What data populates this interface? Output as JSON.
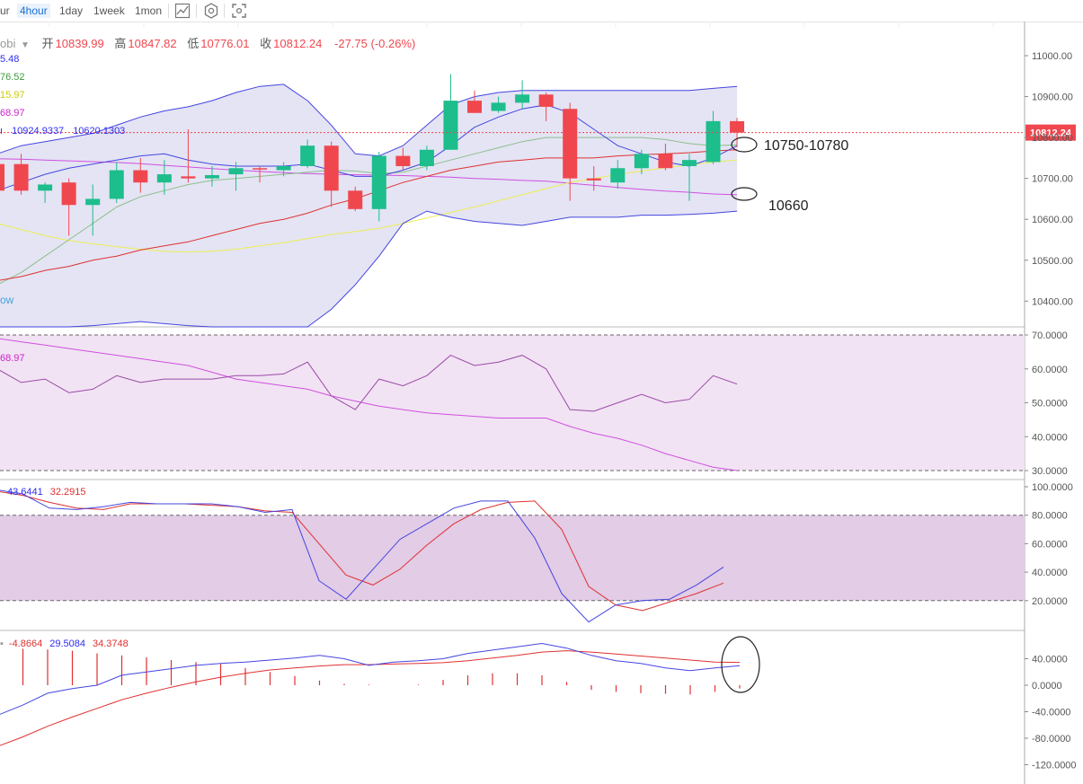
{
  "toolbar": {
    "timeframes": [
      "ur",
      "4hour",
      "1day",
      "1week",
      "1mon"
    ],
    "active_index": 1,
    "icons": [
      "line-chart-icon",
      "settings-icon",
      "fullscreen-icon"
    ]
  },
  "header": {
    "symbol_fragment": "obi",
    "open_label": "开",
    "open": "10839.99",
    "high_label": "高",
    "high": "10847.82",
    "low_label": "低",
    "low": "10776.01",
    "close_label": "收",
    "close": "10812.24",
    "change": "-27.75 (-0.26%)"
  },
  "legend": {
    "ma_values": [
      {
        "text": "5.48",
        "color": "#2d2df0"
      },
      {
        "text": "76.52",
        "color": "#3a9a3a"
      },
      {
        "text": "15.97",
        "color": "#cccc00"
      },
      {
        "text": "68.97",
        "color": "#cc22cc"
      }
    ],
    "boll_values": [
      "10924.9337",
      "10620.1303"
    ],
    "boll_color": "#2d2df0",
    "fragment_ow": "ow",
    "rsi_label": "68.97",
    "kdj_values": [
      "43.6441",
      "32.2915"
    ],
    "macd_values": [
      "-4.8664",
      "29.5084",
      "34.3748"
    ]
  },
  "price_tag": "10812.24",
  "annotations": {
    "upper": "10750-10780",
    "lower": "10660"
  },
  "colors": {
    "up": "#1dbd8c",
    "down": "#f0474f",
    "boll": "#4545e0",
    "band_fill": "#e4e4f4",
    "ma_red": "#e03030",
    "ma_green": "#8cbf8c",
    "ma_yellow": "#eeee55",
    "ma_magenta": "#d050e0",
    "rsi_fill": "#f1e3f3",
    "kdj_fill": "#e2cce6",
    "rsi_line": "#9b4aa8"
  },
  "chart_data": [
    {
      "type": "candlestick",
      "ylim": [
        10350,
        11060
      ],
      "yticks": [
        "11000.00",
        "10900.00",
        "10800.00",
        "10700.00",
        "10600.00",
        "10500.00",
        "10400.00"
      ],
      "candles": [
        {
          "o": 10735,
          "h": 10760,
          "l": 10625,
          "c": 10670
        },
        {
          "o": 10735,
          "h": 10760,
          "l": 10660,
          "c": 10670
        },
        {
          "o": 10670,
          "h": 10690,
          "l": 10640,
          "c": 10685
        },
        {
          "o": 10690,
          "h": 10700,
          "l": 10560,
          "c": 10635
        },
        {
          "o": 10635,
          "h": 10685,
          "l": 10560,
          "c": 10650
        },
        {
          "o": 10650,
          "h": 10740,
          "l": 10640,
          "c": 10720
        },
        {
          "o": 10720,
          "h": 10750,
          "l": 10665,
          "c": 10690
        },
        {
          "o": 10690,
          "h": 10745,
          "l": 10660,
          "c": 10710
        },
        {
          "o": 10705,
          "h": 10820,
          "l": 10690,
          "c": 10700
        },
        {
          "o": 10700,
          "h": 10730,
          "l": 10680,
          "c": 10708
        },
        {
          "o": 10710,
          "h": 10740,
          "l": 10670,
          "c": 10725
        },
        {
          "o": 10725,
          "h": 10730,
          "l": 10690,
          "c": 10722
        },
        {
          "o": 10720,
          "h": 10740,
          "l": 10705,
          "c": 10730
        },
        {
          "o": 10730,
          "h": 10795,
          "l": 10725,
          "c": 10780
        },
        {
          "o": 10780,
          "h": 10790,
          "l": 10630,
          "c": 10670
        },
        {
          "o": 10670,
          "h": 10680,
          "l": 10620,
          "c": 10625
        },
        {
          "o": 10625,
          "h": 10765,
          "l": 10595,
          "c": 10755
        },
        {
          "o": 10755,
          "h": 10775,
          "l": 10720,
          "c": 10730
        },
        {
          "o": 10730,
          "h": 10780,
          "l": 10720,
          "c": 10770
        },
        {
          "o": 10770,
          "h": 10955,
          "l": 10770,
          "c": 10890
        },
        {
          "o": 10890,
          "h": 10915,
          "l": 10860,
          "c": 10860
        },
        {
          "o": 10865,
          "h": 10900,
          "l": 10860,
          "c": 10885
        },
        {
          "o": 10885,
          "h": 10940,
          "l": 10870,
          "c": 10905
        },
        {
          "o": 10905,
          "h": 10910,
          "l": 10840,
          "c": 10875
        },
        {
          "o": 10870,
          "h": 10885,
          "l": 10645,
          "c": 10700
        },
        {
          "o": 10700,
          "h": 10730,
          "l": 10670,
          "c": 10695
        },
        {
          "o": 10690,
          "h": 10745,
          "l": 10675,
          "c": 10725
        },
        {
          "o": 10725,
          "h": 10770,
          "l": 10710,
          "c": 10760
        },
        {
          "o": 10760,
          "h": 10785,
          "l": 10720,
          "c": 10725
        },
        {
          "o": 10730,
          "h": 10760,
          "l": 10645,
          "c": 10745
        },
        {
          "o": 10740,
          "h": 10865,
          "l": 10735,
          "c": 10840
        },
        {
          "o": 10840,
          "h": 10848,
          "l": 10776,
          "c": 10812
        }
      ],
      "boll_upper": [
        10760,
        10780,
        10790,
        10800,
        10810,
        10830,
        10850,
        10865,
        10875,
        10890,
        10910,
        10925,
        10930,
        10890,
        10830,
        10760,
        10755,
        10780,
        10830,
        10880,
        10900,
        10910,
        10915,
        10915,
        10915,
        10915,
        10915,
        10915,
        10915,
        10915,
        10920,
        10925
      ],
      "boll_mid": [
        10670,
        10690,
        10710,
        10725,
        10735,
        10745,
        10755,
        10760,
        10745,
        10735,
        10730,
        10730,
        10730,
        10735,
        10720,
        10705,
        10705,
        10720,
        10740,
        10780,
        10825,
        10850,
        10870,
        10880,
        10860,
        10820,
        10780,
        10760,
        10740,
        10730,
        10750,
        10780
      ],
      "boll_lower": [
        10280,
        10300,
        10320,
        10335,
        10340,
        10345,
        10350,
        10345,
        10340,
        10330,
        10320,
        10310,
        10300,
        10310,
        10380,
        10440,
        10510,
        10590,
        10620,
        10605,
        10595,
        10590,
        10585,
        10595,
        10605,
        10605,
        10605,
        10610,
        10610,
        10612,
        10615,
        10620
      ],
      "ma_red": [
        10450,
        10460,
        10475,
        10485,
        10500,
        10510,
        10525,
        10535,
        10545,
        10560,
        10575,
        10590,
        10600,
        10615,
        10635,
        10650,
        10670,
        10690,
        10705,
        10720,
        10730,
        10740,
        10745,
        10750,
        10750,
        10750,
        10755,
        10758,
        10760,
        10763,
        10767,
        10770
      ],
      "ma_green": [
        10440,
        10470,
        10510,
        10550,
        10590,
        10630,
        10655,
        10670,
        10685,
        10695,
        10700,
        10705,
        10710,
        10715,
        10720,
        10718,
        10712,
        10715,
        10730,
        10745,
        10760,
        10775,
        10790,
        10800,
        10800,
        10800,
        10800,
        10800,
        10795,
        10785,
        10780,
        10782
      ],
      "ma_yellow": [
        10590,
        10575,
        10560,
        10548,
        10540,
        10533,
        10527,
        10522,
        10520,
        10522,
        10527,
        10535,
        10543,
        10553,
        10563,
        10570,
        10578,
        10590,
        10603,
        10617,
        10630,
        10645,
        10660,
        10675,
        10690,
        10700,
        10710,
        10718,
        10726,
        10733,
        10740,
        10745
      ],
      "ma_magenta": [
        10748,
        10747,
        10745,
        10743,
        10741,
        10739,
        10736,
        10732,
        10728,
        10724,
        10720,
        10717,
        10714,
        10712,
        10710,
        10709,
        10708,
        10707,
        10705,
        10703,
        10700,
        10698,
        10695,
        10693,
        10688,
        10683,
        10678,
        10673,
        10669,
        10666,
        10662,
        10660
      ]
    },
    {
      "type": "line",
      "name": "RSI",
      "ylim": [
        30,
        70
      ],
      "yticks": [
        "70.0000",
        "60.0000",
        "50.0000",
        "40.0000",
        "30.0000"
      ],
      "series": [
        {
          "values": [
            60,
            56,
            57,
            53,
            54,
            58,
            56,
            57,
            57,
            57,
            58,
            58,
            58.5,
            62,
            52,
            48,
            57,
            55,
            58,
            64,
            61,
            62,
            64,
            60,
            48,
            47.5,
            50,
            52.5,
            50,
            51,
            58,
            55.5
          ]
        },
        {
          "values": [
            69,
            68,
            67,
            66,
            65,
            64,
            63,
            62,
            61,
            59,
            57,
            56,
            55,
            54,
            52,
            50.5,
            49,
            48,
            47,
            46.5,
            46,
            45.5,
            45.5,
            45.5,
            43,
            41,
            39.5,
            37.5,
            35,
            33,
            31,
            30
          ]
        }
      ]
    },
    {
      "type": "line",
      "name": "KDJ",
      "ylim": [
        0,
        100
      ],
      "yticks": [
        "100.0000",
        "80.0000",
        "60.0000",
        "40.0000",
        "20.0000"
      ],
      "series": [
        {
          "values": [
            98,
            95,
            85,
            84,
            86,
            89,
            88,
            88,
            88,
            86,
            82,
            84,
            34,
            21,
            42,
            63,
            74,
            85,
            90,
            90,
            64,
            25,
            5,
            17,
            20,
            21,
            31,
            43.6
          ]
        },
        {
          "values": [
            97,
            94,
            89,
            85,
            84,
            88,
            88,
            88,
            87,
            86,
            83,
            82,
            60,
            38,
            31,
            42,
            59,
            74,
            84,
            89,
            90,
            70,
            30,
            17,
            13,
            19,
            25,
            32.3
          ]
        }
      ]
    },
    {
      "type": "line",
      "name": "MACD",
      "ylim": [
        -120,
        60
      ],
      "yticks": [
        "40.0000",
        "0.0000",
        "-40.0000",
        "-80.0000",
        "-120.0000"
      ],
      "series": [
        {
          "values": [
            -45,
            -30,
            -12,
            -5,
            0,
            15,
            20,
            25,
            30,
            33,
            35,
            38,
            41,
            45,
            40,
            30,
            35,
            37,
            40,
            48,
            53,
            58,
            63,
            56,
            45,
            37,
            33,
            26,
            22,
            26,
            29.5
          ]
        },
        {
          "values": [
            -92,
            -78,
            -62,
            -48,
            -35,
            -22,
            -12,
            -3,
            5,
            12,
            18,
            23,
            26,
            29,
            31,
            31,
            32,
            33,
            34,
            37,
            41,
            45,
            50,
            52,
            50,
            47,
            44,
            41,
            38,
            35,
            34.4
          ]
        }
      ],
      "histogram": [
        55,
        55,
        54,
        52,
        48,
        45,
        42,
        38,
        35,
        32,
        26,
        20,
        14,
        7,
        2,
        1,
        0,
        1,
        8,
        15,
        18,
        18,
        15,
        5,
        -7,
        -10,
        -12,
        -13,
        -14,
        -10,
        -4.9
      ]
    }
  ]
}
